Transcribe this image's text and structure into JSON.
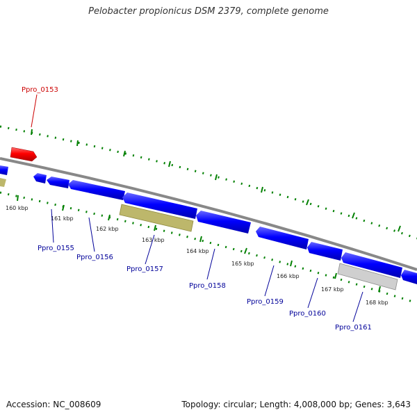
{
  "title": "Pelobacter propionicus DSM 2379, complete genome",
  "accession_text": "Accession: NC_008609",
  "summary_text": "Topology: circular; Length: 4,008,000 bp; Genes: 3,643",
  "colors": {
    "backbone": "#888888",
    "forward_gene": "#ff0000",
    "reverse_gene": "#0000ff",
    "tan_feature": "#bdb76b",
    "grey_feature": "#c8c8c8",
    "ticks": "#008000",
    "gene_label": "#000099",
    "highlight_label": "#cc0000"
  },
  "tick_labels": [
    "160 kbp",
    "161 kbp",
    "162 kbp",
    "163 kbp",
    "164 kbp",
    "165 kbp",
    "166 kbp",
    "167 kbp",
    "168 kbp"
  ],
  "genes": [
    {
      "label": "Ppro_0153",
      "strand": "+",
      "highlight": true
    },
    {
      "label": "Ppro_0155",
      "strand": "-"
    },
    {
      "label": "Ppro_0156",
      "strand": "-"
    },
    {
      "label": "Ppro_0157",
      "strand": "-"
    },
    {
      "label": "Ppro_0158",
      "strand": "-"
    },
    {
      "label": "Ppro_0159",
      "strand": "-"
    },
    {
      "label": "Ppro_0160",
      "strand": "-"
    },
    {
      "label": "Ppro_0161",
      "strand": "-"
    }
  ]
}
